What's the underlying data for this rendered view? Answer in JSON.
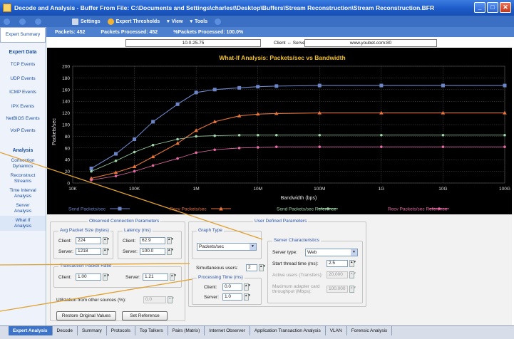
{
  "window": {
    "title": "Decode and Analysis - Buffer From File:  C:\\Documents and Settings\\charlest\\Desktop\\Buffers\\Stream Reconstruction\\Stream Reconstruction.BFR",
    "minimize": "_",
    "maximize": "□",
    "close": "✕"
  },
  "toolbar": {
    "items": [
      "Settings",
      "Expert Thresholds",
      "View",
      "Tools"
    ]
  },
  "status": {
    "packets": "Packets: 452",
    "processed": "Packets Processed: 452",
    "percent": "%Packets Processed: 100.0%"
  },
  "sidebar": {
    "summary": "Expert Summary",
    "expert_head": "Expert Data",
    "expert_items": [
      "TCP Events",
      "UDP Events",
      "ICMP Events",
      "IPX Events",
      "NetBIOS Events",
      "VoIP Events"
    ],
    "analysis_head": "Analysis",
    "analysis_items": [
      "Connection Dynamics",
      "Reconstruct Streams",
      "Time Interval Analysis",
      "Server Analysis",
      "What If Analysis"
    ]
  },
  "address": {
    "client_ip": "10.0.25.75",
    "label": "Client  ↔  Server",
    "server": "www.youbet.com:80"
  },
  "chart_data": {
    "type": "line",
    "title": "What-If Analysis: Packets/sec vs Bandwidth",
    "xlabel": "Bandwidth (bps)",
    "ylabel": "Packets/sec",
    "x_scale": "log",
    "x": [
      20000,
      50000,
      100000,
      200000,
      500000,
      1000000,
      2000000,
      5000000,
      10000000,
      20000000,
      100000000,
      1000000000,
      10000000000,
      100000000000
    ],
    "xticks": [
      "10K",
      "100K",
      "1M",
      "10M",
      "100M",
      "1G",
      "10G",
      "100G"
    ],
    "yticks": [
      0,
      20,
      40,
      60,
      80,
      100,
      120,
      140,
      160,
      180,
      200
    ],
    "ylim": [
      0,
      200
    ],
    "grid": true,
    "series": [
      {
        "name": "Send Packets/sec",
        "color": "#6b85c8",
        "marker": "square",
        "values": [
          25,
          50,
          75,
          105,
          135,
          155,
          160,
          163,
          165,
          166,
          167,
          167,
          167,
          167
        ]
      },
      {
        "name": "Recv Packets/sec",
        "color": "#e8753a",
        "marker": "triangle",
        "values": [
          8,
          18,
          28,
          45,
          68,
          90,
          105,
          115,
          118,
          119,
          120,
          120,
          120,
          120
        ]
      },
      {
        "name": "Send Packets/sec Reference",
        "color": "#9fd4a8",
        "marker": "dot",
        "values": [
          20,
          38,
          53,
          65,
          75,
          80,
          81,
          82,
          82,
          82,
          82,
          82,
          82,
          82
        ]
      },
      {
        "name": "Recv Packets/sec Reference",
        "color": "#e56aa6",
        "marker": "dot",
        "values": [
          5,
          12,
          20,
          30,
          42,
          52,
          57,
          60,
          61,
          62,
          62,
          62,
          62,
          62
        ]
      }
    ]
  },
  "legend": {
    "items": [
      "Send Packets/sec",
      "Recv Packets/sec",
      "Send Packets/sec Reference",
      "Recv Packets/sec Reference"
    ]
  },
  "params": {
    "observed_title": "Observed Connection Parameters",
    "user_title": "User Defined Parameters",
    "avg_size_title": "Avg Packet Size (bytes)",
    "latency_title": "Latency (ms)",
    "client_label": "Client:",
    "server_label": "Server:",
    "avg_client": "224",
    "avg_server": "1218",
    "lat_client": "62.9",
    "lat_server": "100.0",
    "ratio_title": "Transaction Packet Ratio",
    "ratio_client": "1.00",
    "ratio_server": "1.21",
    "utilization_label": "Utilization from other sources (%):",
    "utilization_value": "0.0",
    "restore_button": "Restore Original Values",
    "reference_button": "Set Reference",
    "graph_type_title": "Graph Type",
    "graph_type_value": "Packets/sec",
    "sim_users_label": "Simultaneous users:",
    "sim_users_value": "2",
    "proc_title": "Processing Time (ms)",
    "proc_client": "0.0",
    "proc_server": "1.0",
    "server_char_title": "Server Characteristics",
    "server_type_label": "Server type:",
    "server_type_value": "Web",
    "start_thread_label": "Start thread time (ms):",
    "start_thread_value": "2.5",
    "active_users_label": "Active users (Transfers):",
    "active_users_value": "20,000",
    "max_adapter_label": "Maximum adapter card throughput (Mbps):",
    "max_adapter_value": "100.000"
  },
  "tabs": [
    "Expert Analysis",
    "Decode",
    "Summary",
    "Protocols",
    "Top Talkers",
    "Pairs (Matrix)",
    "Internet Observer",
    "Application Transaction Analysis",
    "VLAN",
    "Forensic Analysis"
  ],
  "colors": {
    "title_bar": "#1d5bc9",
    "toolbar": "#3a6fc4",
    "chart_bg": "#000000",
    "chart_title": "#f2c12e",
    "callout_line": "#e0a030"
  }
}
